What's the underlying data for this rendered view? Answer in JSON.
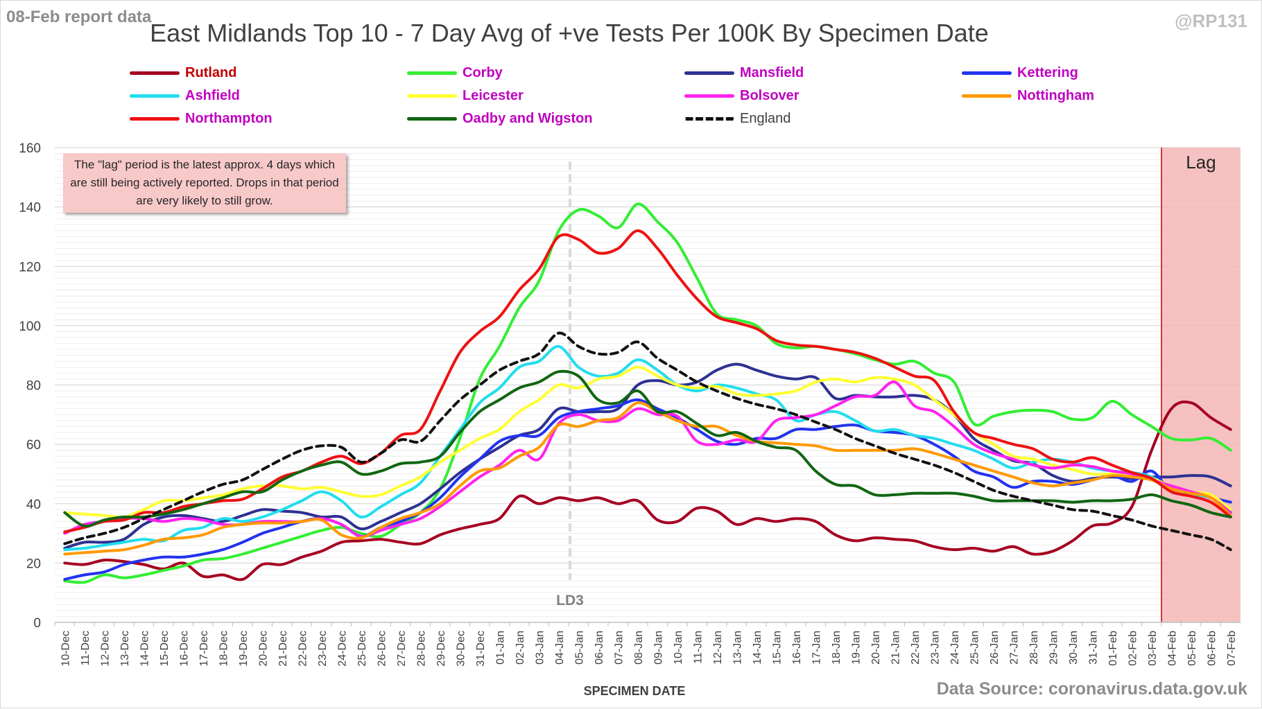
{
  "header": {
    "report_label": "08-Feb report data",
    "title": "East Midlands Top 10 - 7 Day Avg of +ve Tests Per 100K By Specimen Date",
    "handle": "@RP131"
  },
  "footer": {
    "source": "Data Source: coronavirus.data.gov.uk"
  },
  "note": {
    "text": "The \"lag\" period is the latest approx. 4 days which are still being actively reported.  Drops in that period are very likely to still grow."
  },
  "legend": {
    "items": [
      {
        "name": "Rutland",
        "color": "#a50021",
        "text_color": "#c00000",
        "style": "solid"
      },
      {
        "name": "Corby",
        "color": "#33ee33",
        "text_color": "#c000c0",
        "style": "solid"
      },
      {
        "name": "Mansfield",
        "color": "#2e3192",
        "text_color": "#c000c0",
        "style": "solid"
      },
      {
        "name": "Kettering",
        "color": "#2233ee",
        "text_color": "#c000c0",
        "style": "solid"
      },
      {
        "name": "Ashfield",
        "color": "#22ddee",
        "text_color": "#c000c0",
        "style": "solid"
      },
      {
        "name": "Leicester",
        "color": "#ffff33",
        "text_color": "#c000c0",
        "style": "solid"
      },
      {
        "name": "Bolsover",
        "color": "#ff22ee",
        "text_color": "#c000c0",
        "style": "solid"
      },
      {
        "name": "Nottingham",
        "color": "#ff9900",
        "text_color": "#c000c0",
        "style": "solid"
      },
      {
        "name": "Northampton",
        "color": "#ee1111",
        "text_color": "#c000c0",
        "style": "solid"
      },
      {
        "name": "Oadby and Wigston",
        "color": "#116611",
        "text_color": "#c000c0",
        "style": "solid"
      },
      {
        "name": "England",
        "color": "#111111",
        "text_color": "#404040",
        "style": "dashed"
      }
    ]
  },
  "chart_data": {
    "type": "line",
    "title": "East Midlands Top 10 - 7 Day Avg of +ve Tests Per 100K By Specimen Date",
    "xlabel": "SPECIMEN DATE",
    "ylabel": "",
    "ylim": [
      0,
      160
    ],
    "yticks": [
      0,
      20,
      40,
      60,
      80,
      100,
      120,
      140,
      160
    ],
    "grid": true,
    "legend_position": "top",
    "categories": [
      "10-Dec",
      "11-Dec",
      "12-Dec",
      "13-Dec",
      "14-Dec",
      "15-Dec",
      "16-Dec",
      "17-Dec",
      "18-Dec",
      "19-Dec",
      "20-Dec",
      "21-Dec",
      "22-Dec",
      "23-Dec",
      "24-Dec",
      "25-Dec",
      "26-Dec",
      "27-Dec",
      "28-Dec",
      "29-Dec",
      "30-Dec",
      "31-Dec",
      "01-Jan",
      "02-Jan",
      "03-Jan",
      "04-Jan",
      "05-Jan",
      "06-Jan",
      "07-Jan",
      "08-Jan",
      "09-Jan",
      "10-Jan",
      "11-Jan",
      "12-Jan",
      "13-Jan",
      "14-Jan",
      "15-Jan",
      "16-Jan",
      "17-Jan",
      "18-Jan",
      "19-Jan",
      "20-Jan",
      "21-Jan",
      "22-Jan",
      "23-Jan",
      "24-Jan",
      "25-Jan",
      "26-Jan",
      "27-Jan",
      "28-Jan",
      "29-Jan",
      "30-Jan",
      "31-Jan",
      "01-Feb",
      "02-Feb",
      "03-Feb",
      "04-Feb",
      "05-Feb",
      "06-Feb",
      "07-Feb"
    ],
    "annotations": [
      {
        "type": "vline",
        "category": "05-Jan",
        "label": "LD3",
        "style": "dashed",
        "color": "#d9d9d9"
      },
      {
        "type": "shaded_region",
        "from": "04-Feb",
        "to": "07-Feb",
        "label": "Lag",
        "color": "#f4b6b6"
      }
    ],
    "series": [
      {
        "name": "Rutland",
        "color": "#a50021",
        "style": "solid",
        "values": [
          20,
          19.5,
          21,
          20.5,
          19.5,
          18,
          20,
          15.5,
          16,
          14.5,
          19.5,
          19.5,
          22,
          24,
          27,
          27.5,
          28,
          27,
          26.5,
          29.5,
          31.5,
          33,
          35,
          42.5,
          40,
          42,
          41,
          42,
          40,
          41,
          34.5,
          34,
          38.5,
          37.5,
          33,
          35,
          34,
          35,
          34,
          29.5,
          27.5,
          28.5,
          28,
          27.5,
          25.5,
          24.5,
          25,
          24,
          25.5,
          23,
          24,
          27.5,
          32.5,
          33.5,
          39,
          58,
          72,
          74,
          69,
          65
        ]
      },
      {
        "name": "Corby",
        "color": "#33ee33",
        "style": "solid",
        "values": [
          14,
          13.5,
          16,
          15,
          16,
          17.5,
          19,
          21,
          21.5,
          23,
          25,
          27,
          29,
          31,
          32,
          30,
          29,
          33,
          37,
          45,
          62,
          82,
          93,
          106,
          115,
          132,
          139,
          137,
          133,
          141,
          135,
          128,
          116,
          104,
          102,
          100,
          94,
          92.5,
          93,
          92,
          90.5,
          88.5,
          87,
          88,
          84,
          81,
          67,
          69.5,
          71,
          71.5,
          71,
          68.5,
          69,
          74.5,
          70,
          66,
          62,
          61.5,
          62,
          58
        ]
      },
      {
        "name": "Mansfield",
        "color": "#2e3192",
        "style": "solid",
        "values": [
          25,
          27,
          27,
          28,
          33,
          35.5,
          36,
          35,
          34,
          36,
          38,
          37.5,
          37,
          35.5,
          35.5,
          31.5,
          34,
          37,
          40,
          45,
          50.5,
          55,
          59,
          63,
          65,
          72,
          71,
          71,
          72,
          80,
          81.5,
          80,
          81,
          85,
          87,
          85,
          83,
          82,
          82.5,
          75.5,
          76.5,
          76,
          76,
          76.5,
          75,
          70,
          62,
          58,
          54.5,
          53.5,
          49.5,
          47.5,
          48.5,
          49,
          48.5,
          49,
          49,
          49.5,
          49,
          46
        ]
      },
      {
        "name": "Kettering",
        "color": "#2233ee",
        "style": "solid",
        "values": [
          14.5,
          16,
          17,
          19.5,
          21,
          22,
          22,
          23,
          24.5,
          27,
          30,
          32,
          34,
          35,
          33,
          29,
          32,
          34,
          37,
          42,
          49,
          55,
          61,
          63,
          63,
          69,
          71,
          72,
          73,
          75,
          72,
          69,
          65,
          61,
          60,
          62,
          62,
          65,
          65,
          66,
          66.5,
          64.5,
          64,
          63,
          60,
          56,
          51,
          49,
          45.5,
          47.5,
          47.5,
          46.5,
          48,
          49.5,
          47.5,
          51,
          44,
          43.5,
          42,
          40.5
        ]
      },
      {
        "name": "Ashfield",
        "color": "#22ddee",
        "style": "solid",
        "values": [
          24.5,
          25,
          26,
          27,
          28,
          27.5,
          31,
          32,
          35,
          34,
          35.5,
          38,
          41,
          44,
          41,
          35.5,
          39,
          43,
          47,
          56,
          65,
          74,
          79,
          86,
          88,
          93,
          86,
          83,
          84,
          88.5,
          85,
          80,
          78,
          80,
          79,
          77,
          75,
          68,
          70,
          71,
          68,
          64.5,
          65,
          63,
          62,
          60,
          58,
          55,
          52,
          54,
          55,
          54,
          52,
          51,
          50.5,
          49,
          45,
          43,
          42,
          37.5
        ]
      },
      {
        "name": "Leicester",
        "color": "#ffff33",
        "style": "solid",
        "values": [
          37,
          36.5,
          36,
          35.5,
          38,
          41,
          41,
          42,
          43,
          45,
          46,
          46,
          45,
          45.5,
          44,
          42.5,
          43,
          46,
          49,
          54,
          58,
          62,
          65,
          71,
          75,
          80,
          79,
          82,
          83,
          86,
          83,
          80,
          79,
          79.5,
          77,
          76.5,
          77,
          78,
          81,
          82,
          81,
          82.5,
          82,
          80,
          75,
          70,
          64,
          60,
          56,
          55,
          53,
          51.5,
          50,
          50,
          49.5,
          48.5,
          46,
          44,
          43,
          38
        ]
      },
      {
        "name": "Bolsover",
        "color": "#ff22ee",
        "style": "solid",
        "values": [
          30,
          33,
          34,
          35,
          35,
          34,
          35,
          34.5,
          33,
          33,
          34,
          34,
          34,
          35,
          33,
          29,
          31,
          33,
          35,
          39,
          44,
          49,
          53,
          58,
          55,
          67,
          70,
          68,
          68,
          72,
          70,
          69.5,
          61,
          60,
          61.5,
          61,
          68,
          69,
          70,
          73,
          76,
          76.5,
          81,
          73,
          71,
          66,
          60,
          57,
          55,
          53,
          52,
          53,
          52.5,
          51,
          50,
          48,
          46,
          44,
          42,
          37
        ]
      },
      {
        "name": "Nottingham",
        "color": "#ff9900",
        "style": "solid",
        "values": [
          23,
          23.5,
          24,
          24.5,
          26,
          28,
          28.5,
          29.5,
          32,
          33,
          33.5,
          33.5,
          34,
          34.5,
          29.5,
          28.5,
          32,
          35,
          37,
          40,
          46,
          51,
          52,
          56,
          59,
          66.5,
          66,
          68,
          69,
          74,
          71,
          68,
          66,
          66,
          63,
          61,
          60.5,
          60,
          59.5,
          58,
          58,
          58,
          58,
          58.5,
          57,
          55,
          53,
          51,
          49,
          47,
          46,
          47,
          48,
          49.5,
          49,
          48,
          45,
          43.5,
          42,
          36
        ]
      },
      {
        "name": "Northampton",
        "color": "#ee1111",
        "style": "solid",
        "values": [
          30.5,
          32,
          34,
          34.5,
          37,
          37,
          39,
          40,
          41,
          41.5,
          45,
          49,
          51,
          54,
          56,
          53.5,
          57,
          63,
          65,
          78,
          91,
          98,
          103,
          112,
          119,
          130,
          129,
          124.5,
          126,
          132,
          126,
          117,
          109,
          103,
          101,
          99,
          95,
          93.5,
          93,
          92,
          91,
          89,
          86,
          83,
          81.5,
          71,
          64,
          62,
          60,
          58.5,
          55,
          54,
          55.5,
          53,
          50.5,
          48.5,
          44,
          42.5,
          40.5,
          35.5
        ]
      },
      {
        "name": "Oadby and Wigston",
        "color": "#116611",
        "style": "solid",
        "values": [
          37,
          32.5,
          34.5,
          35.5,
          35.5,
          36.5,
          38,
          40,
          42,
          44,
          44,
          48,
          51,
          53,
          54,
          50,
          51,
          53.5,
          54,
          56,
          64,
          71,
          75,
          79,
          81,
          84.5,
          83,
          75,
          74,
          78,
          71,
          71,
          67,
          63,
          64,
          61,
          59,
          58,
          51,
          46.5,
          46,
          43,
          43,
          43.5,
          43.5,
          43.5,
          42.5,
          41,
          41,
          41,
          41,
          40.5,
          41,
          41,
          41.5,
          43,
          41,
          39.5,
          37,
          35.5
        ]
      },
      {
        "name": "England",
        "color": "#111111",
        "style": "dashed",
        "values": [
          26.5,
          28.5,
          30,
          32,
          35,
          38,
          41,
          44,
          46.5,
          48,
          51.5,
          55,
          58,
          59.5,
          59,
          54,
          57,
          61.5,
          61,
          68,
          75,
          80,
          85,
          88,
          90.5,
          97.5,
          93,
          90.5,
          91,
          94.5,
          89,
          85,
          81,
          78,
          75.5,
          73.5,
          72,
          70,
          67.5,
          65,
          62,
          59.5,
          57,
          55,
          53,
          50.5,
          47.5,
          44.5,
          42.5,
          41,
          39.5,
          38,
          37.5,
          36,
          34.5,
          32.5,
          31,
          29.5,
          28,
          24.5
        ]
      }
    ]
  }
}
